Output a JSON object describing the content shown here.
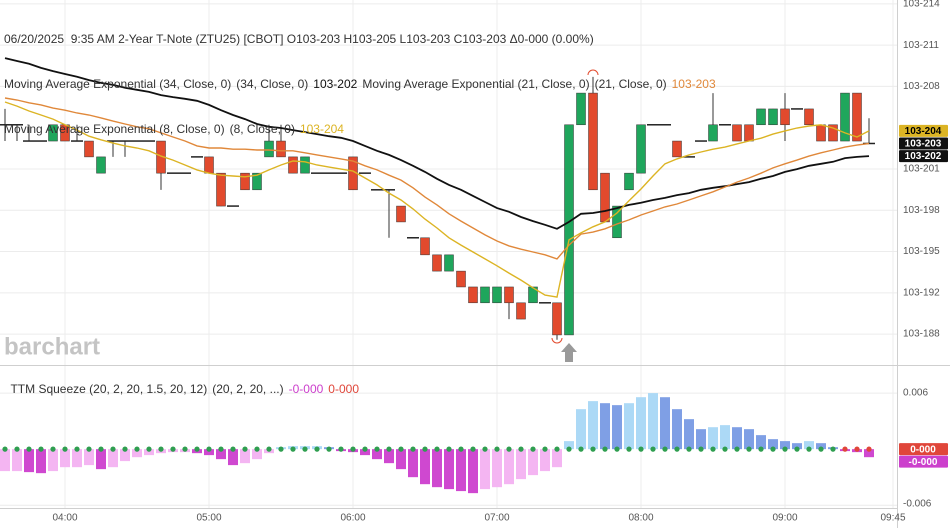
{
  "chart_data": [
    {
      "type": "candlestick",
      "title": "06/20/2025  9:35 AM 2-Year T-Note (ZTU25) [CBOT] O103-203 H103-205 L103-203 C103-203 Δ0-000 (0.00%)",
      "watermark": "barchart",
      "x": [
        "03:35",
        "03:40",
        "03:45",
        "03:50",
        "03:55",
        "04:00",
        "04:05",
        "04:10",
        "04:15",
        "04:20",
        "04:25",
        "04:30",
        "04:35",
        "04:40",
        "04:45",
        "04:50",
        "04:55",
        "05:00",
        "05:05",
        "05:10",
        "05:15",
        "05:20",
        "05:25",
        "05:30",
        "05:35",
        "05:40",
        "05:45",
        "05:50",
        "05:55",
        "06:00",
        "06:05",
        "06:10",
        "06:15",
        "06:20",
        "06:25",
        "06:30",
        "06:35",
        "06:40",
        "06:45",
        "06:50",
        "06:55",
        "07:00",
        "07:05",
        "07:10",
        "07:15",
        "07:20",
        "07:25",
        "07:30",
        "07:35",
        "07:40",
        "07:45",
        "07:50",
        "07:55",
        "08:00",
        "08:05",
        "08:10",
        "08:15",
        "08:20",
        "08:25",
        "08:30",
        "08:35",
        "08:40",
        "08:45",
        "08:50",
        "08:55",
        "09:00",
        "09:05",
        "09:10",
        "09:15",
        "09:20",
        "09:25",
        "09:30",
        "09:35"
      ],
      "open": [
        103.639,
        103.639,
        103.635,
        103.635,
        103.635,
        103.639,
        103.635,
        103.635,
        103.6271,
        103.635,
        103.635,
        103.635,
        103.635,
        103.635,
        103.6271,
        103.6271,
        103.6311,
        103.6311,
        103.6271,
        103.619,
        103.6271,
        103.623,
        103.6311,
        103.635,
        103.6311,
        103.6271,
        103.6271,
        103.6271,
        103.6271,
        103.6311,
        103.6271,
        103.623,
        103.623,
        103.619,
        103.6112,
        103.6112,
        103.607,
        103.603,
        103.603,
        103.5991,
        103.5952,
        103.5952,
        103.5991,
        103.5952,
        103.5952,
        103.5952,
        103.5952,
        103.5873,
        103.639,
        103.6468,
        103.6271,
        103.6112,
        103.623,
        103.6271,
        103.639,
        103.639,
        103.635,
        103.6311,
        103.635,
        103.635,
        103.639,
        103.639,
        103.639,
        103.639,
        103.639,
        103.6429,
        103.6429,
        103.6429,
        103.639,
        103.639,
        103.635,
        103.6468,
        103.6344
      ],
      "high": [
        103.6429,
        103.639,
        103.639,
        103.635,
        103.639,
        103.639,
        103.639,
        103.635,
        103.6311,
        103.635,
        103.635,
        103.635,
        103.635,
        103.635,
        103.6271,
        103.6271,
        103.6311,
        103.6311,
        103.6271,
        103.619,
        103.6271,
        103.6271,
        103.639,
        103.639,
        103.6311,
        103.6311,
        103.6271,
        103.6271,
        103.6271,
        103.6311,
        103.6271,
        103.623,
        103.623,
        103.619,
        103.6112,
        103.6112,
        103.607,
        103.607,
        103.603,
        103.5991,
        103.5991,
        103.5991,
        103.5991,
        103.5952,
        103.5991,
        103.5952,
        103.5952,
        103.639,
        103.6468,
        103.6508,
        103.6271,
        103.619,
        103.6271,
        103.639,
        103.639,
        103.639,
        103.635,
        103.6311,
        103.635,
        103.6468,
        103.639,
        103.639,
        103.639,
        103.6429,
        103.6429,
        103.6468,
        103.6429,
        103.6429,
        103.639,
        103.639,
        103.6468,
        103.6468,
        103.6406
      ],
      "low": [
        103.635,
        103.635,
        103.635,
        103.635,
        103.635,
        103.635,
        103.635,
        103.6311,
        103.6271,
        103.6311,
        103.6311,
        103.635,
        103.635,
        103.623,
        103.6271,
        103.6271,
        103.6311,
        103.6271,
        103.619,
        103.619,
        103.623,
        103.623,
        103.6311,
        103.6311,
        103.6271,
        103.6271,
        103.6271,
        103.6271,
        103.6271,
        103.623,
        103.6271,
        103.623,
        103.6112,
        103.6151,
        103.6112,
        103.607,
        103.603,
        103.603,
        103.5991,
        103.5952,
        103.5952,
        103.5952,
        103.5912,
        103.5912,
        103.5952,
        103.5952,
        103.5861,
        103.5873,
        103.639,
        103.623,
        103.6151,
        103.6112,
        103.623,
        103.6271,
        103.639,
        103.639,
        103.6311,
        103.6311,
        103.635,
        103.635,
        103.639,
        103.635,
        103.635,
        103.639,
        103.639,
        103.635,
        103.6429,
        103.639,
        103.635,
        103.635,
        103.635,
        103.635,
        103.6344
      ],
      "close": [
        103.639,
        103.639,
        103.635,
        103.635,
        103.639,
        103.635,
        103.635,
        103.6311,
        103.6311,
        103.635,
        103.635,
        103.635,
        103.635,
        103.6271,
        103.6271,
        103.6271,
        103.6311,
        103.6271,
        103.619,
        103.619,
        103.623,
        103.6271,
        103.635,
        103.6311,
        103.6271,
        103.6311,
        103.6271,
        103.6271,
        103.6271,
        103.623,
        103.6271,
        103.623,
        103.623,
        103.6151,
        103.6112,
        103.607,
        103.603,
        103.607,
        103.5991,
        103.5952,
        103.5991,
        103.5991,
        103.5952,
        103.5912,
        103.5991,
        103.5952,
        103.5873,
        103.639,
        103.6468,
        103.623,
        103.6151,
        103.619,
        103.6271,
        103.639,
        103.639,
        103.639,
        103.6311,
        103.6311,
        103.635,
        103.639,
        103.639,
        103.635,
        103.635,
        103.6429,
        103.6429,
        103.639,
        103.6429,
        103.639,
        103.635,
        103.635,
        103.6468,
        103.635,
        103.6344
      ],
      "up_color": "#1fa65c",
      "down_color": "#e24a2d",
      "doji_color": "#222222",
      "last_label": "103-203",
      "series": [
        {
          "name": "Moving Average Exponential (34, Close, 0)",
          "params": "(34, Close, 0)",
          "value_label": "103-202",
          "color": "#111111",
          "values": [
            103.6554,
            103.6547,
            103.654,
            103.653,
            103.6522,
            103.6515,
            103.6508,
            103.65,
            103.6493,
            103.6488,
            103.6481,
            103.6476,
            103.6471,
            103.6463,
            103.6458,
            103.6454,
            103.6449,
            103.6439,
            103.6426,
            103.6414,
            103.6404,
            103.6392,
            103.6385,
            103.6382,
            103.6377,
            103.6372,
            103.6367,
            103.6362,
            103.6358,
            103.635,
            103.6338,
            103.6326,
            103.6316,
            103.6303,
            103.6289,
            103.6274,
            103.6257,
            103.6242,
            103.623,
            103.6215,
            103.62,
            103.6185,
            103.6176,
            103.6163,
            103.6153,
            103.6144,
            103.6134,
            103.6151,
            103.6171,
            103.6173,
            103.6178,
            103.6185,
            103.6193,
            103.6198,
            103.6205,
            103.621,
            103.6217,
            103.6222,
            103.623,
            103.6235,
            103.6239,
            103.6244,
            103.6249,
            103.6257,
            103.6264,
            103.6274,
            103.6281,
            103.6289,
            103.6294,
            103.6299,
            103.6308,
            103.6311,
            103.6313
          ]
        },
        {
          "name": "Moving Average Exponential (21, Close, 0)",
          "params": "(21, Close, 0)",
          "value_label": "103-203",
          "color": "#e0883a",
          "values": [
            103.6456,
            103.6451,
            103.6444,
            103.6439,
            103.6431,
            103.6426,
            103.6419,
            103.6414,
            103.6407,
            103.6399,
            103.6392,
            103.6385,
            103.638,
            103.637,
            103.636,
            103.635,
            103.6338,
            103.6333,
            103.6333,
            103.633,
            103.633,
            103.6328,
            103.6328,
            103.6326,
            103.6326,
            103.6321,
            103.6316,
            103.6311,
            103.6306,
            103.6301,
            103.6289,
            103.6279,
            103.6266,
            103.6254,
            103.6235,
            103.6212,
            103.6193,
            103.6171,
            103.6153,
            103.6136,
            103.6119,
            103.6104,
            103.6092,
            103.6084,
            103.6077,
            103.607,
            103.606,
            103.6094,
            103.6121,
            103.6126,
            103.6134,
            103.6146,
            103.6156,
            103.6168,
            103.6178,
            103.6188,
            103.6195,
            103.6205,
            103.6215,
            103.6225,
            103.6237,
            103.6249,
            103.6259,
            103.6271,
            103.6284,
            103.6294,
            103.6303,
            103.6313,
            103.6321,
            103.6328,
            103.6335,
            103.634,
            103.6344
          ]
        },
        {
          "name": "Moving Average Exponential (8, Close, 0)",
          "params": "(8, Close, 0)",
          "value_label": "103-204",
          "color": "#dcb424",
          "values": [
            103.6446,
            103.6436,
            103.6424,
            103.6414,
            103.6404,
            103.639,
            103.6377,
            103.6362,
            103.6353,
            103.6345,
            103.6338,
            103.6333,
            103.6326,
            103.6313,
            103.6303,
            103.6291,
            103.6279,
            103.6271,
            103.6266,
            103.6264,
            103.6262,
            103.6266,
            103.6279,
            103.6291,
            103.6301,
            103.6299,
            103.6291,
            103.6286,
            103.6281,
            103.6276,
            103.6259,
            103.6242,
            103.6222,
            103.6205,
            103.6183,
            103.6158,
            103.6136,
            103.6112,
            103.6094,
            103.6077,
            103.606,
            103.6043,
            103.6025,
            103.6008,
            103.5989,
            103.5971,
            103.5966,
            103.6107,
            103.6124,
            103.6139,
            103.6151,
            103.6173,
            103.6203,
            103.6232,
            103.6264,
            103.6294,
            103.6306,
            103.6316,
            103.6323,
            103.633,
            103.6335,
            103.6343,
            103.635,
            103.6357,
            103.6367,
            103.6375,
            103.6382,
            103.6387,
            103.639,
            103.6382,
            103.637,
            103.636,
            103.6375
          ]
        }
      ],
      "ylim": [
        103.5799,
        103.6697
      ],
      "yticks": [
        {
          "value": 103.66875,
          "label": "103-214"
        },
        {
          "value": 103.65859,
          "label": "103-211"
        },
        {
          "value": 103.64844,
          "label": "103-208"
        },
        {
          "value": 103.62813,
          "label": "103-201"
        },
        {
          "value": 103.61797,
          "label": "103-198"
        },
        {
          "value": 103.60781,
          "label": "103-195"
        },
        {
          "value": 103.59766,
          "label": "103-192"
        },
        {
          "value": 103.5875,
          "label": "103-188"
        }
      ],
      "xticks": [
        "04:00",
        "05:00",
        "06:00",
        "07:00",
        "08:00",
        "09:00",
        "09:45"
      ],
      "grid": true
    },
    {
      "type": "squeeze",
      "title": "TTM Squeeze (20, 2, 20, 1.5, 20, 12)",
      "params": "(20, 2, 20, ...)",
      "series": [
        {
          "values": [
            -0.00235,
            -0.00235,
            -0.00246,
            -0.00257,
            -0.00235,
            -0.00193,
            -0.00193,
            -0.00171,
            -0.00214,
            -0.00193,
            -0.00128,
            -0.00086,
            -0.00064,
            -0.00043,
            -0.00032,
            -0.00032,
            -0.00043,
            -0.00064,
            -0.00107,
            -0.00171,
            -0.0015,
            -0.00107,
            -0.00043,
            0.00021,
            0.00032,
            0.00032,
            0.00032,
            0.00021,
            -0.00021,
            -0.00032,
            -0.00064,
            -0.00107,
            -0.0015,
            -0.00214,
            -0.003,
            -0.00375,
            -0.00407,
            -0.00428,
            -0.00449,
            -0.00471,
            -0.00428,
            -0.00407,
            -0.00375,
            -0.00321,
            -0.00278,
            -0.00235,
            -0.00193,
            0.00086,
            0.00428,
            0.00514,
            0.00492,
            0.00471,
            0.00492,
            0.00556,
            0.006,
            0.00556,
            0.00428,
            0.00321,
            0.00214,
            0.00235,
            0.00257,
            0.00235,
            0.00214,
            0.0015,
            0.00107,
            0.00086,
            0.00064,
            0.00086,
            0.00064,
            0.00021,
            -0.00021,
            -0.00032,
            -0.00086
          ],
          "value_label": "-0-000",
          "color": "#cc3fcc",
          "colors": {
            "up_rising": "#acd9f6",
            "up_falling": "#7f9fe5",
            "down_falling": "#cf48d0",
            "down_rising": "#f4b5f2"
          }
        },
        {
          "values": [
            0,
            0,
            0,
            0,
            0,
            0,
            0,
            0,
            0,
            0,
            0,
            0,
            0,
            0,
            0,
            0,
            0,
            0,
            0,
            0,
            0,
            0,
            0,
            0,
            0,
            0,
            0,
            0,
            0,
            0,
            0,
            0,
            0,
            0,
            0,
            0,
            0,
            0,
            0,
            0,
            0,
            0,
            0,
            0,
            0,
            0,
            0,
            0,
            0,
            0,
            0,
            0,
            0,
            0,
            0,
            0,
            0,
            0,
            0,
            0,
            0,
            0,
            0,
            0,
            0,
            0,
            0,
            0,
            0,
            0,
            0,
            0,
            0
          ],
          "value_label": "0-000",
          "color": "#e0463a",
          "colors": [
            "#2f9e50",
            "#2f9e50",
            "#2f9e50",
            "#2f9e50",
            "#2f9e50",
            "#2f9e50",
            "#2f9e50",
            "#2f9e50",
            "#2f9e50",
            "#2f9e50",
            "#2f9e50",
            "#2f9e50",
            "#2f9e50",
            "#2f9e50",
            "#2f9e50",
            "#2f9e50",
            "#2f9e50",
            "#2f9e50",
            "#2f9e50",
            "#2f9e50",
            "#2f9e50",
            "#2f9e50",
            "#2f9e50",
            "#2f9e50",
            "#2f9e50",
            "#2f9e50",
            "#2f9e50",
            "#2f9e50",
            "#2f9e50",
            "#2f9e50",
            "#2f9e50",
            "#2f9e50",
            "#2f9e50",
            "#2f9e50",
            "#2f9e50",
            "#2f9e50",
            "#2f9e50",
            "#2f9e50",
            "#2f9e50",
            "#2f9e50",
            "#2f9e50",
            "#2f9e50",
            "#2f9e50",
            "#2f9e50",
            "#2f9e50",
            "#2f9e50",
            "#2f9e50",
            "#2f9e50",
            "#2f9e50",
            "#2f9e50",
            "#2f9e50",
            "#2f9e50",
            "#2f9e50",
            "#2f9e50",
            "#2f9e50",
            "#2f9e50",
            "#2f9e50",
            "#2f9e50",
            "#2f9e50",
            "#2f9e50",
            "#2f9e50",
            "#2f9e50",
            "#2f9e50",
            "#2f9e50",
            "#2f9e50",
            "#2f9e50",
            "#2f9e50",
            "#2f9e50",
            "#2f9e50",
            "#2f9e50",
            "#e0463a",
            "#e0463a",
            "#e0463a"
          ]
        }
      ],
      "ylim": [
        -0.0063,
        0.0089
      ],
      "yticks": [
        0.006,
        -0.006
      ],
      "grid": true
    }
  ]
}
